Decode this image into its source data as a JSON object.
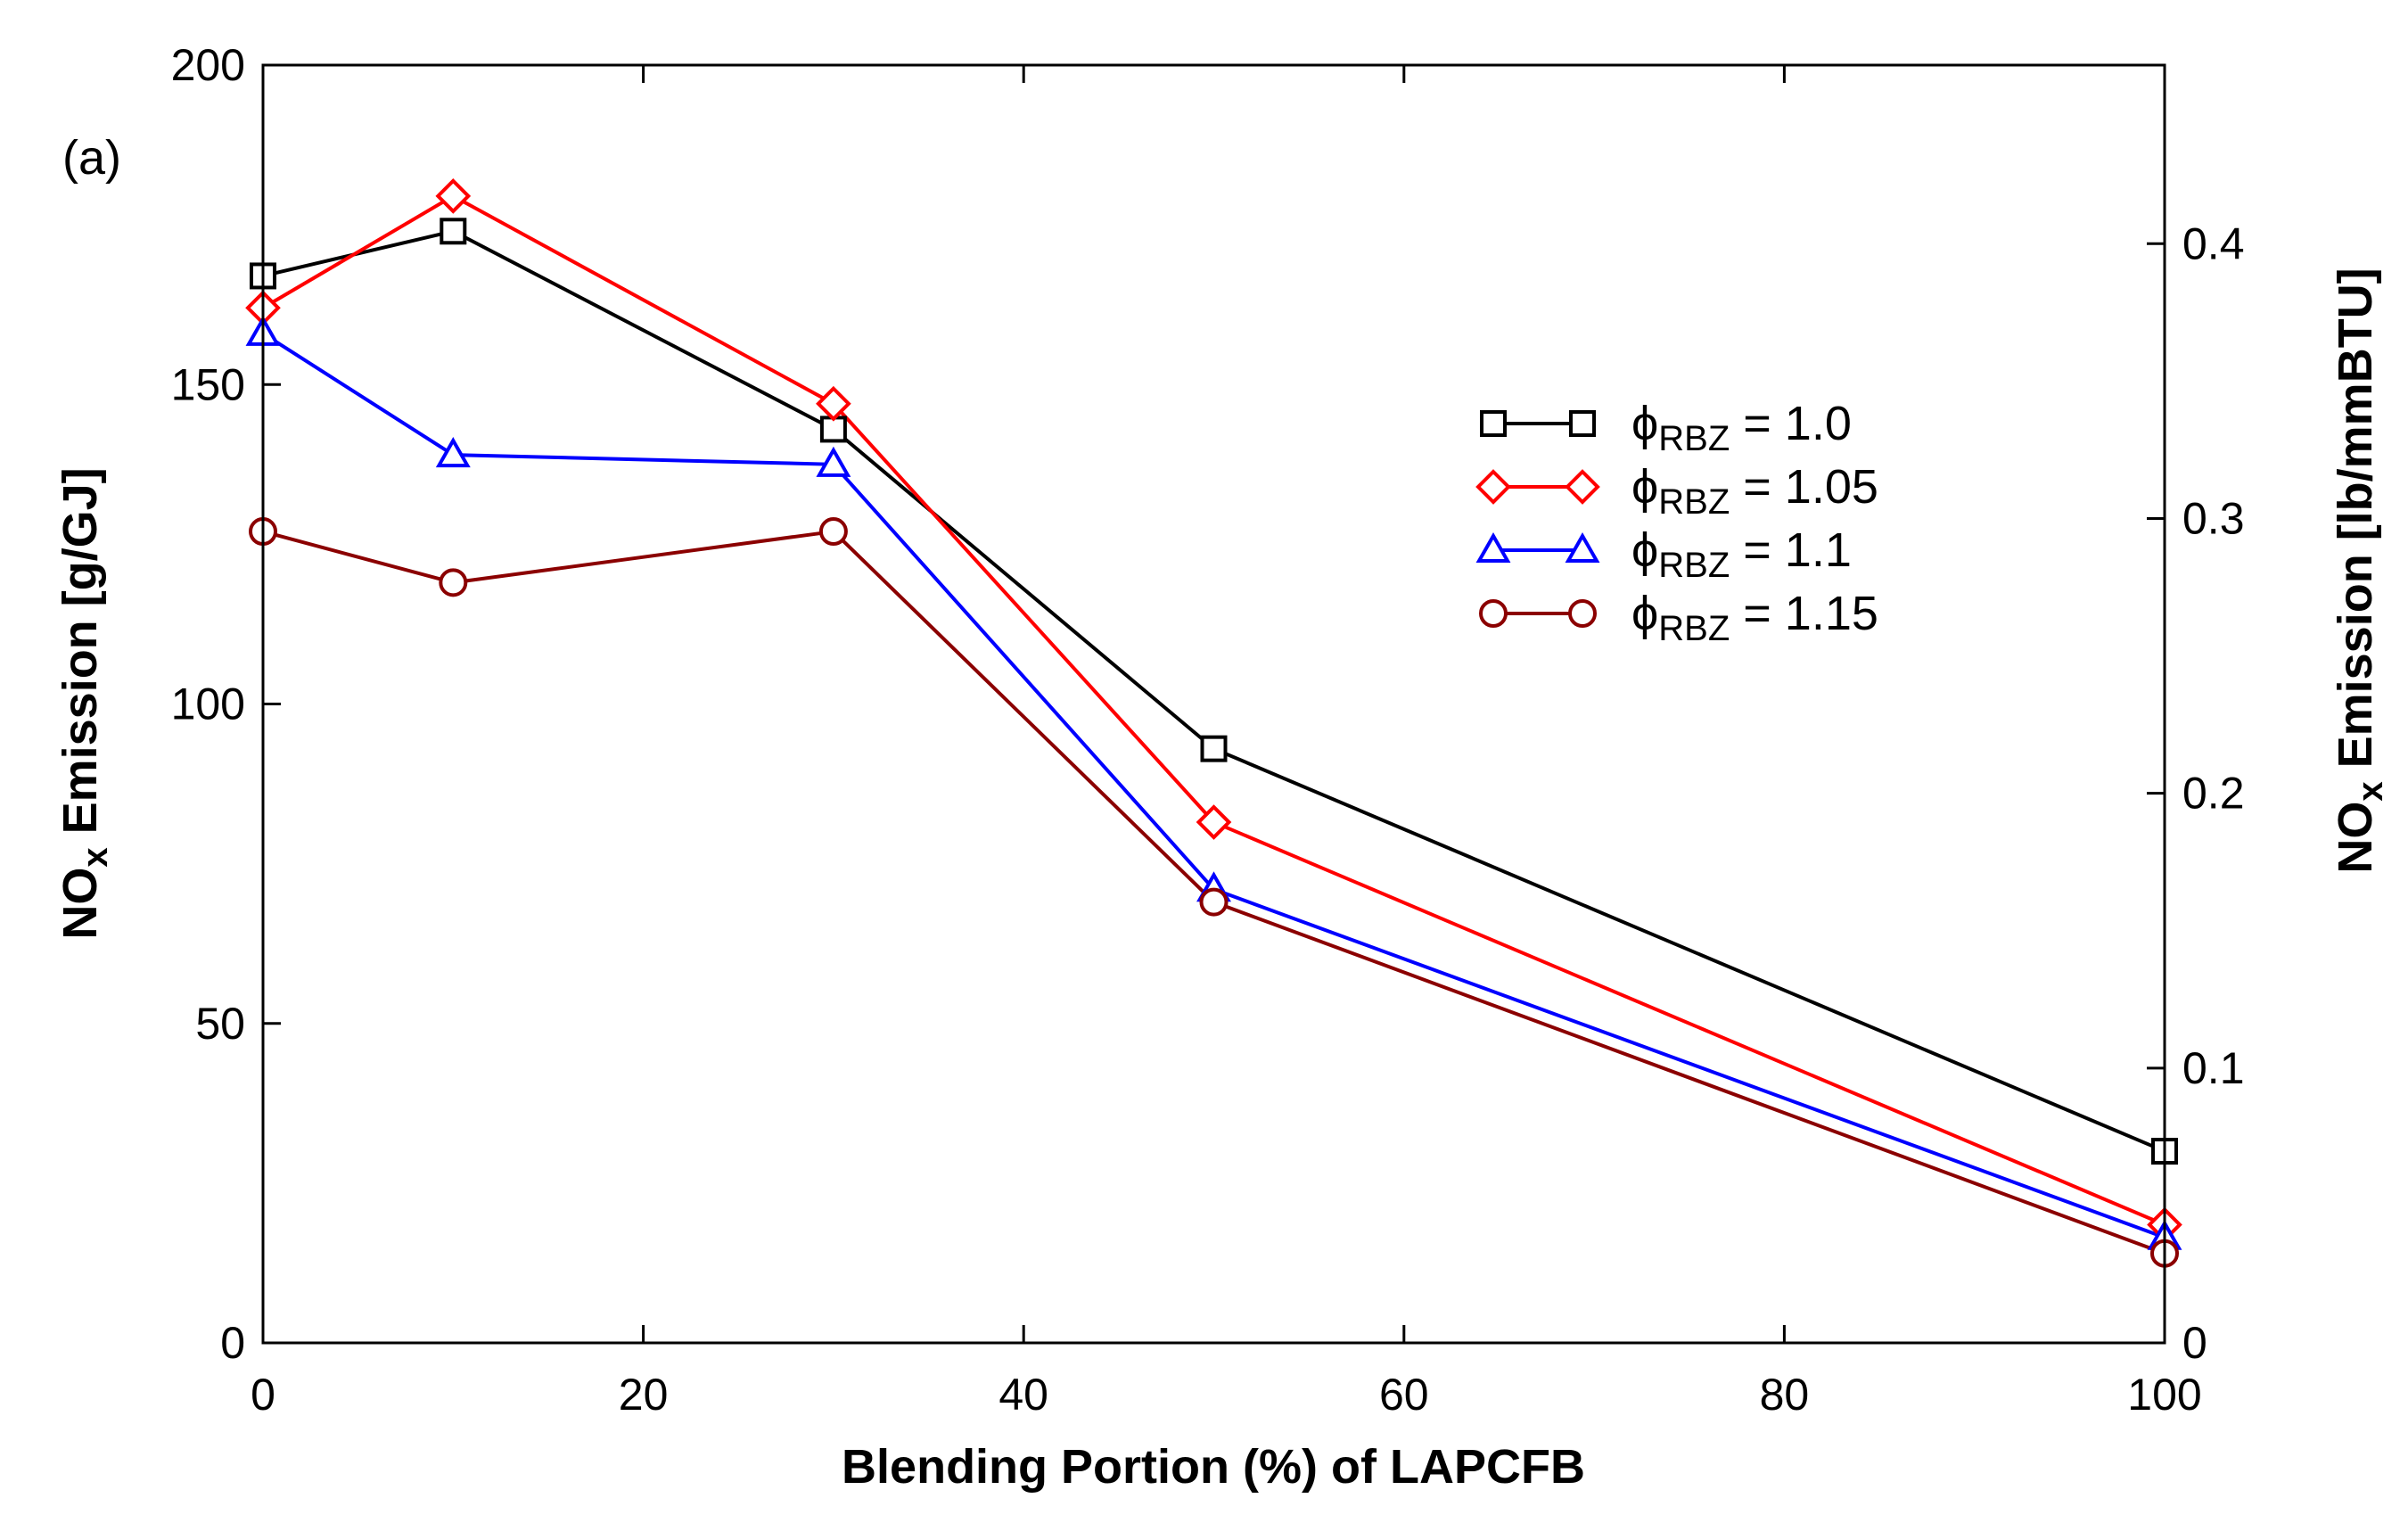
{
  "panel_label": "(a)",
  "chart_data": {
    "type": "line",
    "title": "",
    "xlabel": "Blending Portion (%) of LAPCFB",
    "ylabel": {
      "prefix": "NO",
      "sub": "x",
      "suffix": " Emission [g/GJ]"
    },
    "y2label": {
      "prefix": "NO",
      "sub": "x",
      "suffix": " Emission [lb/mmBTU]"
    },
    "xlim": [
      0,
      100
    ],
    "ylim": [
      0,
      200
    ],
    "y2lim": [
      0,
      0.465
    ],
    "xticks": [
      0,
      20,
      40,
      60,
      80,
      100
    ],
    "yticks": [
      0,
      50,
      100,
      150,
      200
    ],
    "y2ticks": [
      0,
      0.1,
      0.2,
      0.3,
      0.4
    ],
    "xtick_labels": [
      "0",
      "20",
      "40",
      "60",
      "80",
      "100"
    ],
    "ytick_labels": [
      "0",
      "50",
      "100",
      "150",
      "200"
    ],
    "y2tick_labels": [
      "0",
      "0.1",
      "0.2",
      "0.3",
      "0.4"
    ],
    "legend_position": "upper-right-center",
    "grid": false,
    "x": [
      0,
      10,
      30,
      50,
      100
    ],
    "series": [
      {
        "key": "s1",
        "name": "= 1.0",
        "phi": "ϕ",
        "sub": "RBZ",
        "color": "#000000",
        "marker": "square",
        "values": [
          167,
          174,
          143,
          93,
          30
        ]
      },
      {
        "key": "s2",
        "name": "= 1.05",
        "phi": "ϕ",
        "sub": "RBZ",
        "color": "#ff0000",
        "marker": "diamond",
        "values": [
          162,
          179.5,
          147,
          81.5,
          18.5
        ]
      },
      {
        "key": "s3",
        "name": "= 1.1",
        "phi": "ϕ",
        "sub": "RBZ",
        "color": "#0000ff",
        "marker": "triangle",
        "values": [
          158,
          139,
          137.5,
          71,
          16.5
        ]
      },
      {
        "key": "s4",
        "name": "= 1.15",
        "phi": "ϕ",
        "sub": "RBZ",
        "color": "#8b0000",
        "marker": "circle",
        "values": [
          127,
          119,
          127,
          69,
          14
        ]
      }
    ]
  }
}
